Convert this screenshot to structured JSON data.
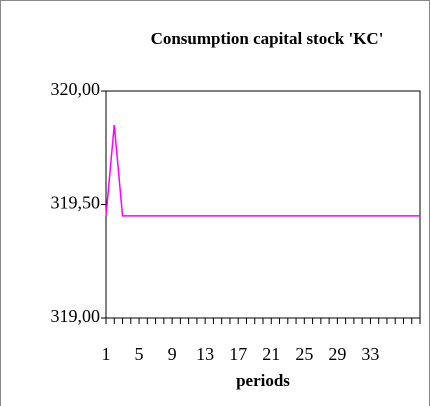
{
  "chart_data": {
    "type": "line",
    "title": "Consumption capital stock 'KC'",
    "x_label": "periods",
    "categories": [
      1,
      null,
      null,
      null,
      5,
      null,
      null,
      null,
      9,
      null,
      null,
      null,
      13,
      null,
      null,
      null,
      17,
      null,
      null,
      null,
      21,
      null,
      null,
      null,
      25,
      null,
      null,
      null,
      29,
      null,
      null,
      null,
      33,
      null,
      null,
      null,
      null,
      null,
      null
    ],
    "series": [
      {
        "name": "KC",
        "color": "#ff00ff",
        "values": [
          319.45,
          319.85,
          319.45,
          319.45,
          319.45,
          319.45,
          319.45,
          319.45,
          319.45,
          319.45,
          319.45,
          319.45,
          319.45,
          319.45,
          319.45,
          319.45,
          319.45,
          319.45,
          319.45,
          319.45,
          319.45,
          319.45,
          319.45,
          319.45,
          319.45,
          319.45,
          319.45,
          319.45,
          319.45,
          319.45,
          319.45,
          319.45,
          319.45,
          319.45,
          319.45,
          319.45,
          319.45,
          319.45,
          319.45
        ]
      }
    ],
    "ylim": [
      319,
      320
    ],
    "yticks": [
      {
        "value": 319,
        "label": "319,00"
      },
      {
        "value": 319.5,
        "label": "319,50"
      },
      {
        "value": 320,
        "label": "320,00"
      }
    ],
    "grid": false
  }
}
